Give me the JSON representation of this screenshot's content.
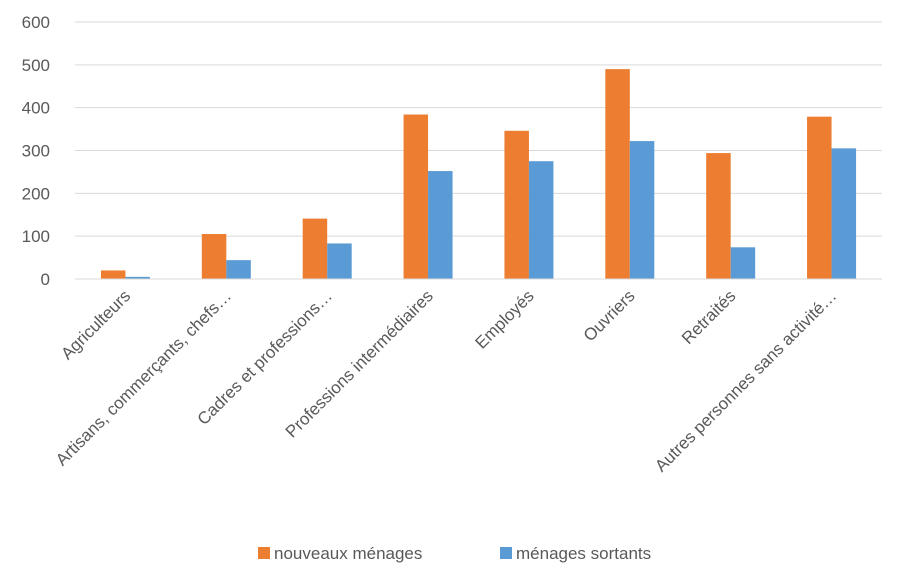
{
  "chart_data": {
    "type": "bar",
    "categories": [
      "Agriculteurs",
      "Artisans, commerçants, chefs…",
      "Cadres et professions…",
      "Professions intermédiaires",
      "Employés",
      "Ouvriers",
      "Retraités",
      "Autres personnes sans activité…"
    ],
    "series": [
      {
        "name": "nouveaux ménages",
        "color": "#ed7d31",
        "values": [
          20,
          105,
          141,
          384,
          346,
          490,
          294,
          379
        ]
      },
      {
        "name": "ménages sortants",
        "color": "#5b9bd5",
        "values": [
          5,
          44,
          83,
          252,
          275,
          322,
          74,
          305
        ]
      }
    ],
    "yticks": [
      "0",
      "100",
      "200",
      "300",
      "400",
      "500",
      "600"
    ],
    "ylim": [
      0,
      600
    ],
    "grid": true,
    "legend": "bottom"
  }
}
